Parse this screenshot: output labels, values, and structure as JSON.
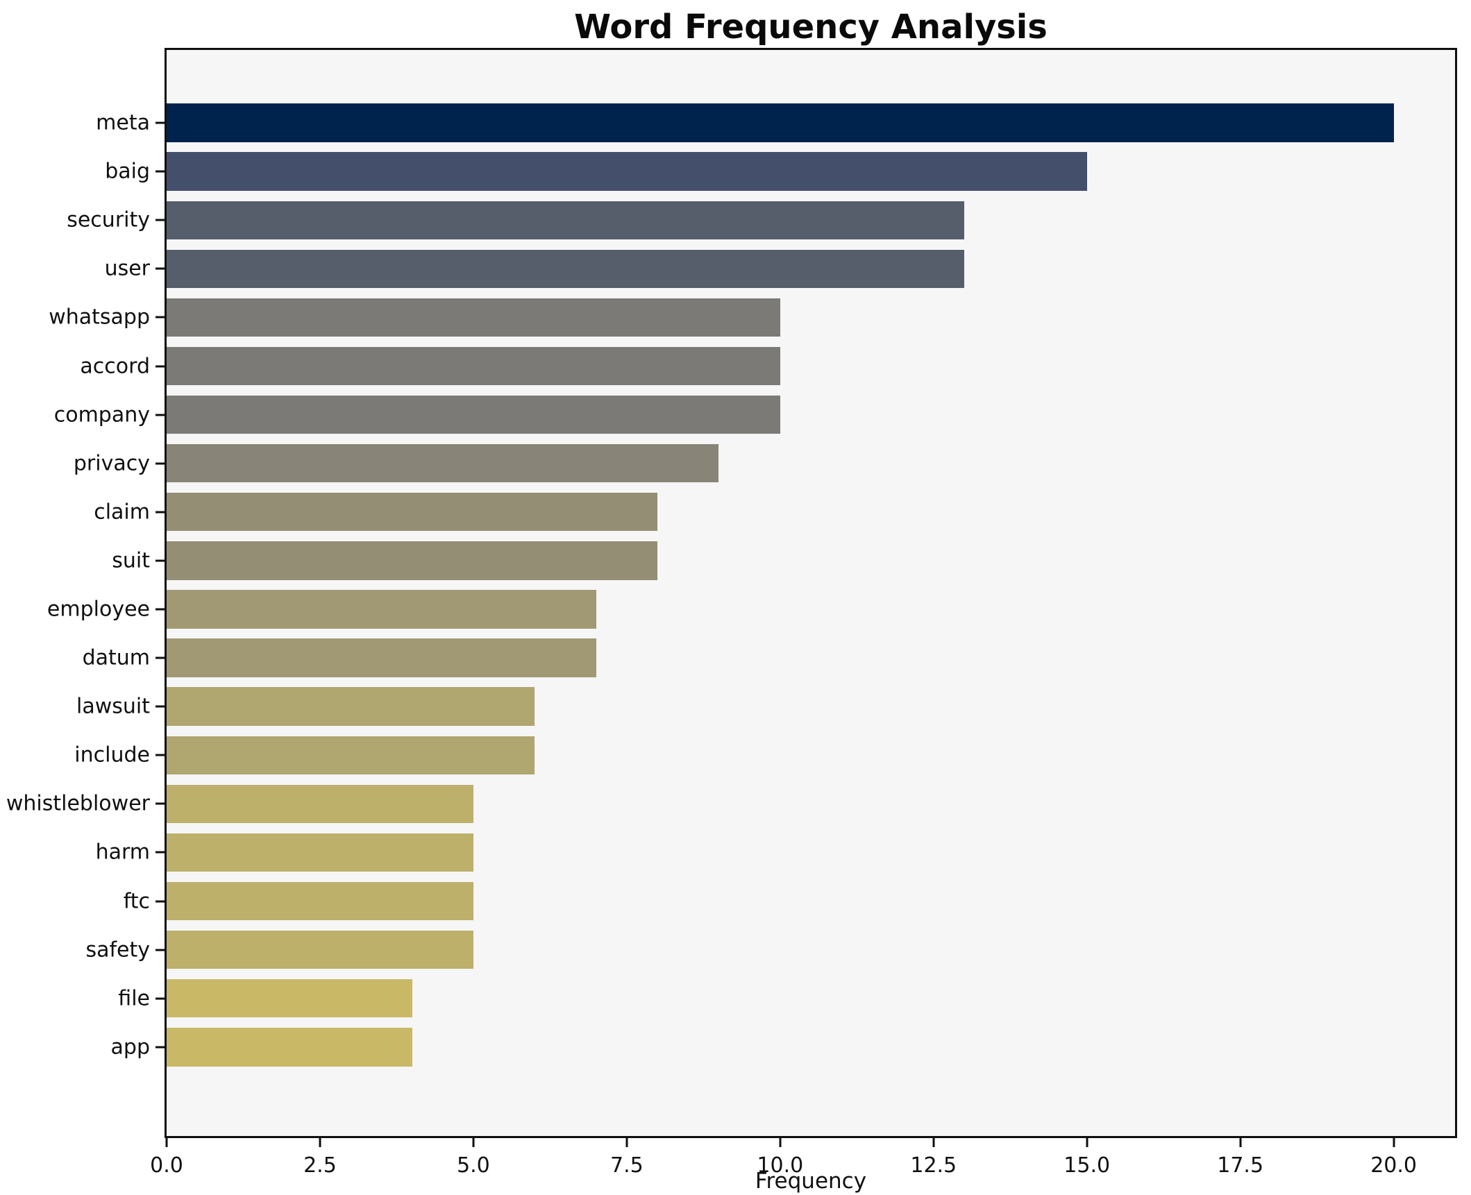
{
  "chart_data": {
    "type": "bar",
    "orientation": "horizontal",
    "title": "Word Frequency Analysis",
    "xlabel": "Frequency",
    "ylabel": "",
    "categories": [
      "meta",
      "baig",
      "security",
      "user",
      "whatsapp",
      "accord",
      "company",
      "privacy",
      "claim",
      "suit",
      "employee",
      "datum",
      "lawsuit",
      "include",
      "whistleblower",
      "harm",
      "ftc",
      "safety",
      "file",
      "app"
    ],
    "values": [
      20,
      15,
      13,
      13,
      10,
      10,
      10,
      9,
      8,
      8,
      7,
      7,
      6,
      6,
      5,
      5,
      5,
      5,
      4,
      4
    ],
    "bar_colors": [
      "#00234e",
      "#434f6b",
      "#575e6b",
      "#575e6b",
      "#7b7a76",
      "#7b7a76",
      "#7b7a76",
      "#888578",
      "#948e75",
      "#948e75",
      "#a19973",
      "#a19973",
      "#b0a66f",
      "#b0a66f",
      "#bcb06b",
      "#bcb06b",
      "#bcb06b",
      "#bcb06b",
      "#c9b967",
      "#c9b967"
    ],
    "xlim": [
      0,
      21
    ],
    "x_ticks": [
      0,
      2.5,
      5,
      7.5,
      10,
      12.5,
      15,
      17.5,
      20
    ],
    "x_tick_labels": [
      "0.0",
      "2.5",
      "5.0",
      "7.5",
      "10.0",
      "12.5",
      "15.0",
      "17.5",
      "20.0"
    ],
    "grid": false,
    "legend": "none",
    "colors": {
      "figure_background": "#ffffff",
      "axes_background": "#f6f6f7",
      "spine": "#0f0f0f",
      "text": "#101010"
    }
  }
}
